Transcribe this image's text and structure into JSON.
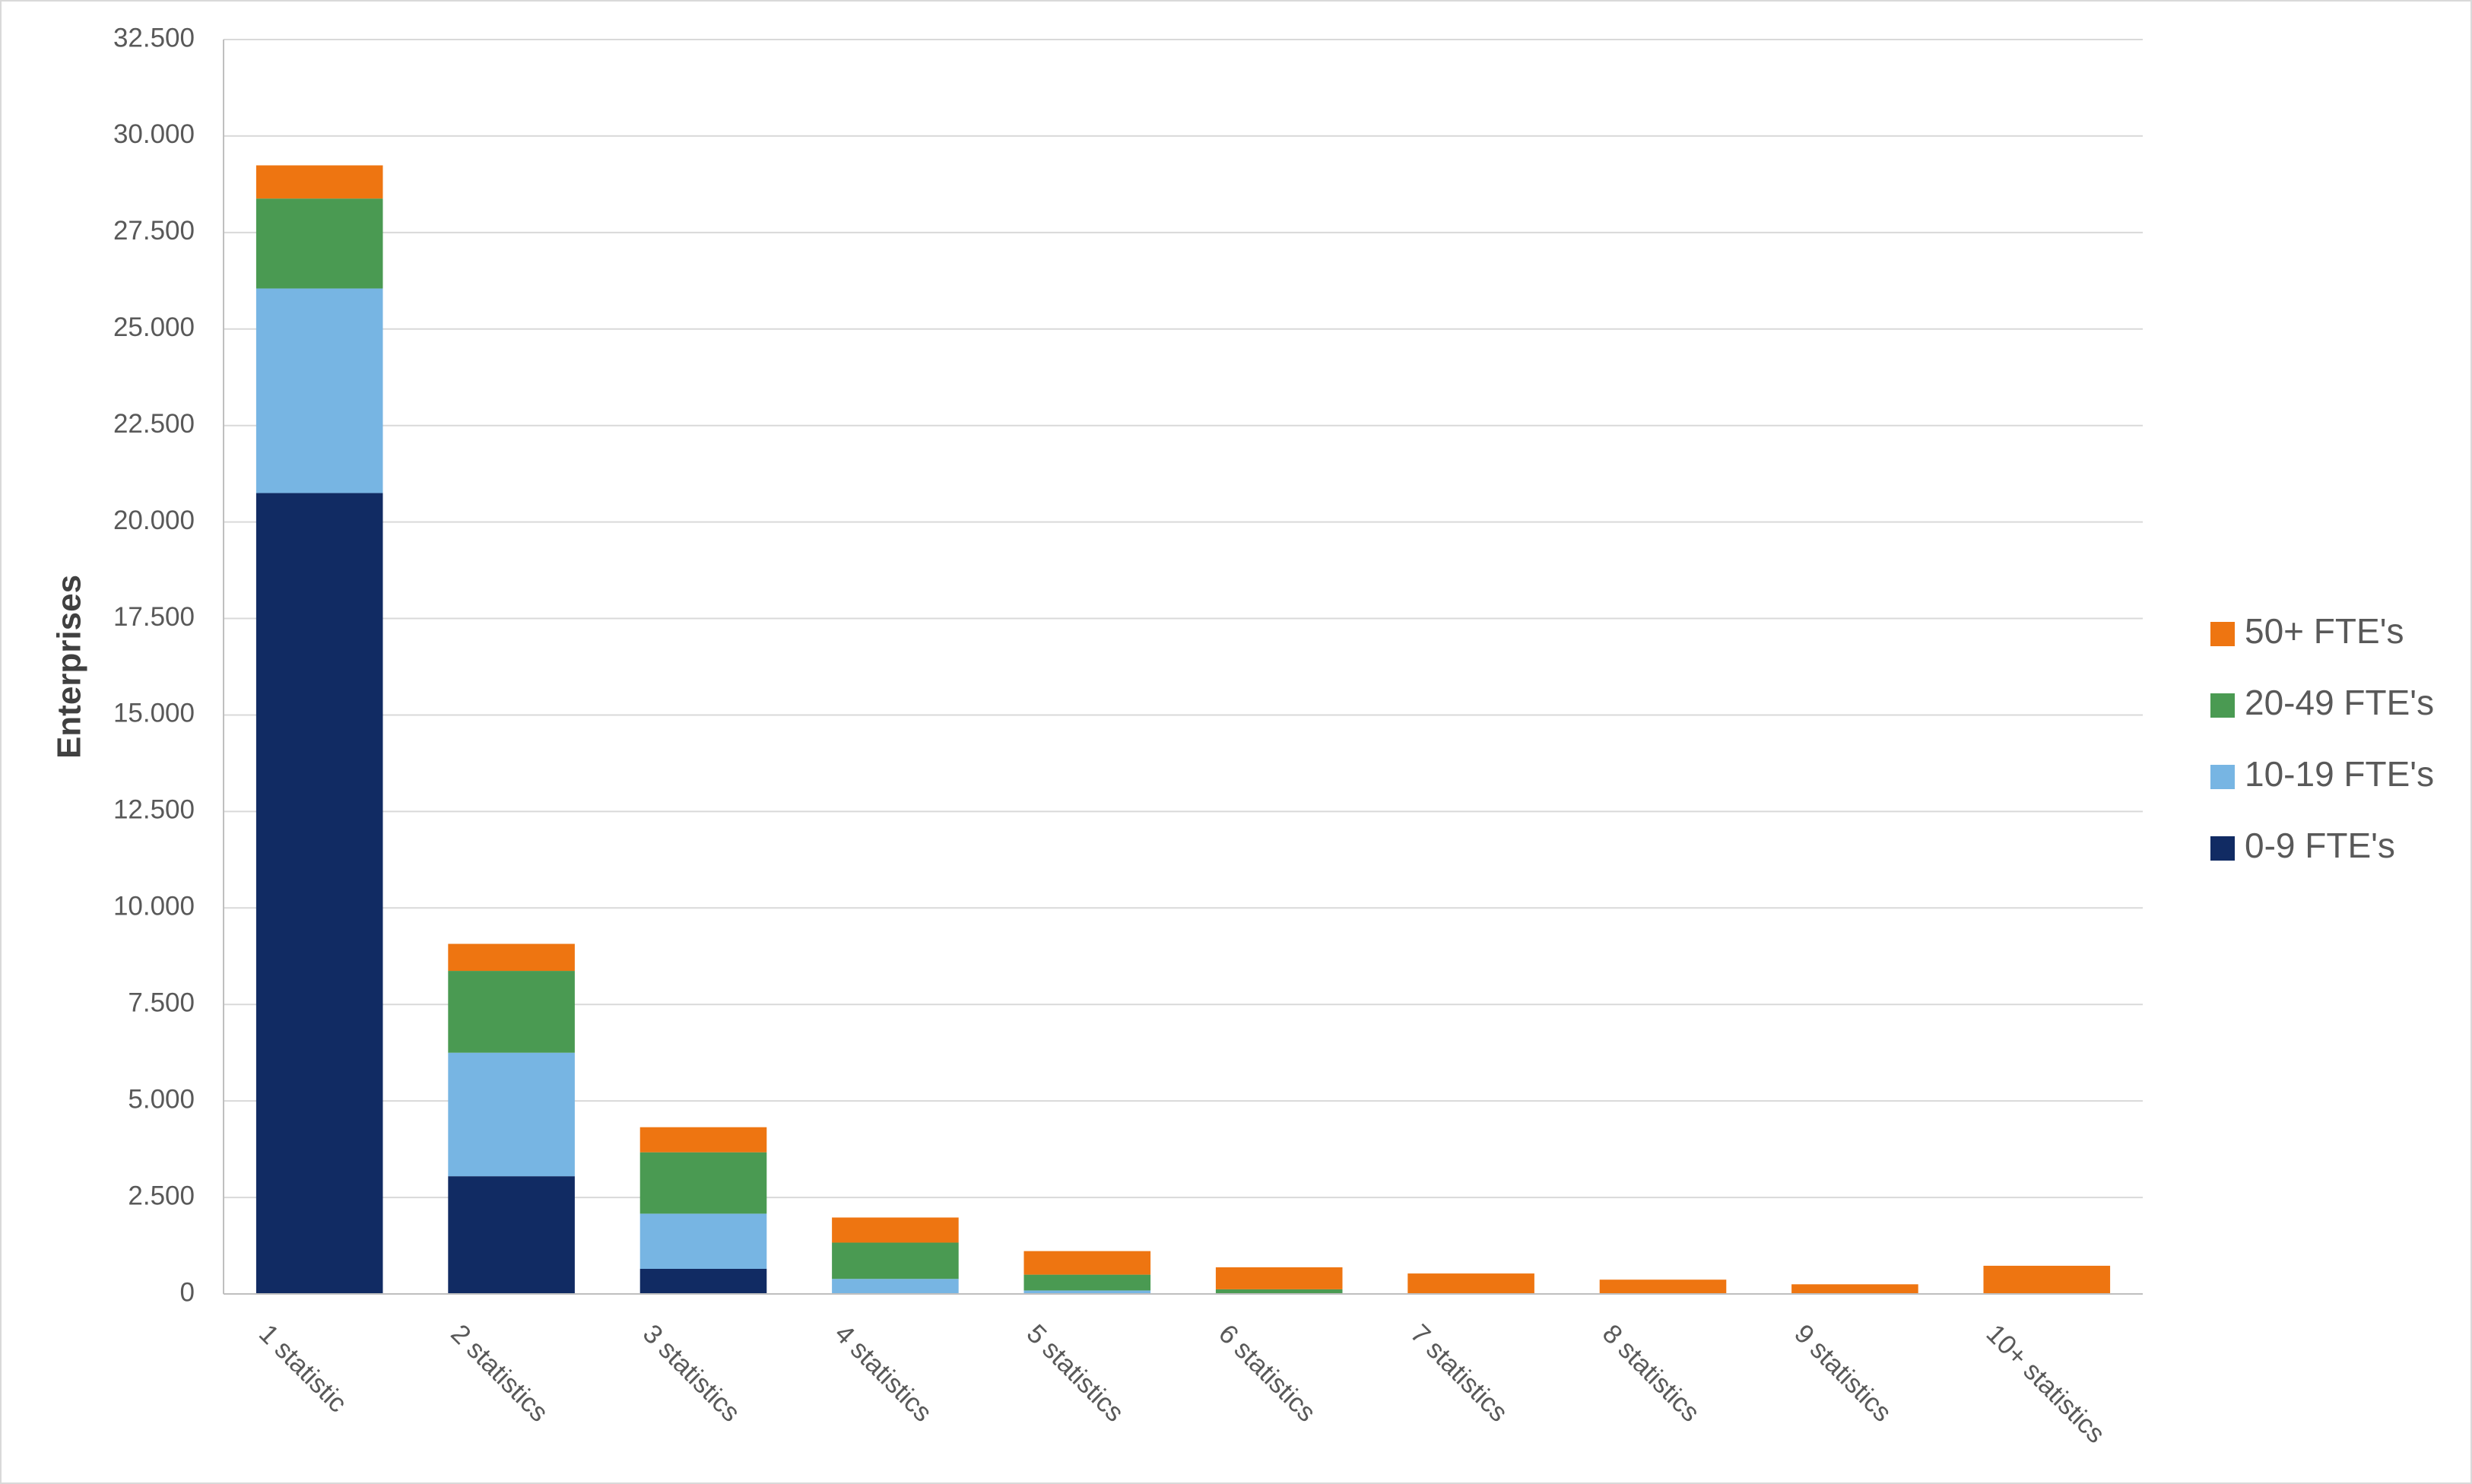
{
  "chart_data": {
    "type": "stacked_bar",
    "y_label": "Enterprises",
    "categories": [
      "1 statistic",
      "2 statistics",
      "3 statistics",
      "4 statistics",
      "5 statistics",
      "6 statistics",
      "7 statistics",
      "8 statistics",
      "9 statistics",
      "10+ statistics"
    ],
    "series": [
      {
        "name": "0-9 FTE's",
        "color": "#112b63",
        "values": [
          20750,
          3050,
          650,
          20,
          10,
          0,
          0,
          0,
          0,
          0
        ]
      },
      {
        "name": "10-19 FTE's",
        "color": "#77b5e3",
        "values": [
          5300,
          3200,
          1430,
          370,
          80,
          20,
          0,
          0,
          0,
          0
        ]
      },
      {
        "name": "20-49 FTE's",
        "color": "#4a9a52",
        "values": [
          2330,
          2120,
          1590,
          940,
          410,
          100,
          0,
          0,
          0,
          0
        ]
      },
      {
        "name": "50+ FTE's",
        "color": "#ee7511",
        "values": [
          860,
          700,
          650,
          650,
          610,
          570,
          530,
          370,
          250,
          730
        ]
      }
    ],
    "ylim": [
      0,
      32500
    ],
    "yticks": [
      0,
      {
        "value": 2500,
        "label": "2.500"
      },
      {
        "value": 5000,
        "label": "5.000"
      },
      {
        "value": 7500,
        "label": "7.500"
      },
      {
        "value": 10000,
        "label": "10.000"
      },
      {
        "value": 12500,
        "label": "12.500"
      },
      {
        "value": 15000,
        "label": "15.000"
      },
      {
        "value": 17500,
        "label": "17.500"
      },
      {
        "value": 20000,
        "label": "20.000"
      },
      {
        "value": 22500,
        "label": "22.500"
      },
      {
        "value": 25000,
        "label": "25.000"
      },
      {
        "value": 27500,
        "label": "27.500"
      },
      {
        "value": 30000,
        "label": "30.000"
      },
      {
        "value": 32500,
        "label": "32.500"
      }
    ],
    "grid": true,
    "legend": "right"
  }
}
